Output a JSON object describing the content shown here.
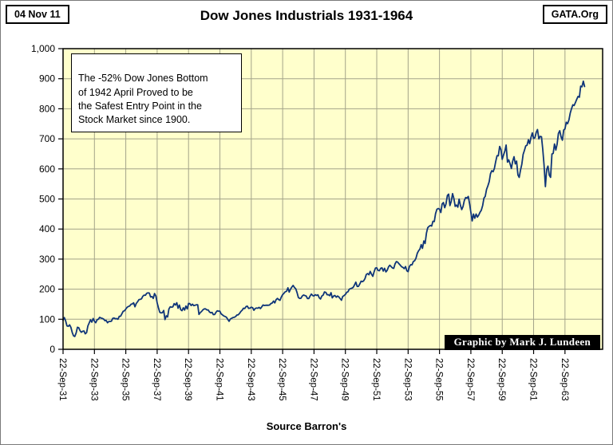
{
  "header": {
    "date": "04 Nov 11",
    "title": "Dow Jones Industrials 1931-1964",
    "site": "GATA.Org"
  },
  "annotation": {
    "text": "The -52% Dow Jones Bottom\nof 1942 April Proved to be\nthe Safest Entry Point in the\nStock Market since 1900."
  },
  "credit": {
    "text": "Graphic by Mark J. Lundeen"
  },
  "source": {
    "text": "Source Barron's"
  },
  "chart_data": {
    "type": "line",
    "title": "Dow Jones Industrials 1931-1964",
    "xlabel": "",
    "ylabel": "",
    "ylim": [
      0,
      1000
    ],
    "y_tick_step": 100,
    "y_tick_labels": [
      "0",
      "100",
      "200",
      "300",
      "400",
      "500",
      "600",
      "700",
      "800",
      "900",
      "1,000"
    ],
    "x_tick_labels": [
      "22-Sep-31",
      "22-Sep-33",
      "22-Sep-35",
      "22-Sep-37",
      "22-Sep-39",
      "22-Sep-41",
      "22-Sep-43",
      "22-Sep-45",
      "22-Sep-47",
      "22-Sep-49",
      "22-Sep-51",
      "22-Sep-53",
      "22-Sep-55",
      "22-Sep-57",
      "22-Sep-59",
      "22-Sep-61",
      "22-Sep-63"
    ],
    "x_tick_interval_years": 2,
    "x_total_years": 34.4,
    "grid": true,
    "legend": "none",
    "background_color": "#FFFFCC",
    "grid_color": "#A3A389",
    "line_color": "#0F3579",
    "series": [
      {
        "name": "Dow Jones Industrial Average",
        "start": "1931-09",
        "interval": "monthly",
        "values": [
          96.6,
          105.7,
          93.9,
          77.9,
          76.4,
          81.4,
          73.3,
          56.1,
          44.7,
          42.8,
          54.3,
          73.2,
          71.6,
          61.9,
          56.4,
          59.9,
          60.9,
          51.4,
          55.4,
          77.7,
          88.1,
          98.1,
          90.4,
          102.4,
          93.7,
          88.2,
          98.1,
          99.9,
          106.3,
          104,
          102.8,
          100.5,
          95.2,
          96,
          88.4,
          92.6,
          92.6,
          93.4,
          102.9,
          104,
          101.7,
          102,
          100.1,
          109.5,
          110.2,
          118.2,
          126.4,
          128.1,
          134,
          139.5,
          142.4,
          144.1,
          149.8,
          151,
          154.6,
          141.3,
          152.6,
          157.7,
          164.9,
          166.1,
          167.8,
          176.3,
          180,
          179.9,
          186.1,
          187.7,
          187,
          174.1,
          175.7,
          169.3,
          185.3,
          177.1,
          154.6,
          138.2,
          123,
          120.9,
          121.9,
          129.1,
          99,
          111.3,
          107.7,
          133.9,
          141.5,
          140.1,
          141.5,
          151.9,
          147.3,
          154.8,
          136.4,
          147.3,
          131.8,
          128.5,
          138.1,
          130.6,
          143.8,
          134.4,
          152.5,
          151.9,
          145.7,
          150.2,
          145.3,
          146.5,
          148,
          148.4,
          116.2,
          121.9,
          126.1,
          131.2,
          134.6,
          134.4,
          131,
          131.1,
          124.4,
          121.5,
          122.9,
          115.5,
          115.9,
          123.1,
          128.2,
          126.8,
          126.8,
          117.8,
          114.2,
          111,
          109.1,
          106.6,
          99.7,
          93,
          100.9,
          103.3,
          105.8,
          106.3,
          109.1,
          114.1,
          114.6,
          119.4,
          125.6,
          129.9,
          136.5,
          135.5,
          142.1,
          143.4,
          136,
          136.9,
          140.1,
          138.5,
          129.6,
          135.9,
          137.4,
          136.7,
          139.4,
          135.5,
          141.2,
          147.5,
          145.7,
          146.3,
          146.7,
          146.3,
          147.3,
          152.3,
          153.8,
          160.4,
          154.4,
          165,
          169.1,
          165.3,
          162.8,
          174.3,
          181.7,
          186.6,
          191.6,
          192.9,
          204.4,
          190.1,
          199.8,
          206.8,
          212.5,
          205.6,
          201.6,
          189.2,
          172.4,
          169.2,
          169.8,
          177.2,
          180.6,
          178.9,
          177.2,
          169,
          169,
          177.3,
          183.8,
          178.9,
          177.5,
          181.8,
          179.1,
          181.2,
          171.2,
          167.5,
          177.2,
          180.5,
          190.7,
          189.5,
          181.3,
          181.7,
          178.3,
          188.2,
          171.2,
          177.3,
          179.1,
          173.1,
          177.1,
          174.2,
          168.4,
          163,
          175.9,
          178.7,
          182.5,
          189.5,
          191.6,
          200.1,
          201.8,
          203.4,
          206.1,
          214.3,
          223.4,
          209.1,
          209.4,
          216.9,
          226.4,
          225,
          227.6,
          235.4,
          248.8,
          252.1,
          247.9,
          259.1,
          249.7,
          242.6,
          257.9,
          270.3,
          271.2,
          262.4,
          261.3,
          269.2,
          270.7,
          260.1,
          269.5,
          257.6,
          262.9,
          274.4,
          279.6,
          275,
          270.6,
          269.2,
          283.7,
          291.9,
          289.8,
          284.3,
          279.9,
          274.8,
          272.3,
          268.3,
          275.4,
          261.2,
          258,
          275.8,
          281.4,
          280.9,
          292.4,
          294.5,
          303.5,
          319.3,
          327.5,
          333.5,
          347.9,
          335.8,
          360.5,
          352.1,
          386.8,
          404.4,
          408.8,
          411.9,
          409.7,
          425.7,
          424.9,
          451.4,
          465.9,
          468.2,
          466.6,
          454.9,
          483.3,
          488.4,
          470.7,
          483.7,
          511.8,
          516.1,
          478.1,
          492.8,
          517.8,
          502,
          475.3,
          479.9,
          472.8,
          499.5,
          479.2,
          464.6,
          474.8,
          494.4,
          504.9,
          503.3,
          508.5,
          484.4,
          456.3,
          427,
          449.9,
          435.7,
          450,
          439.9,
          446.8,
          455.9,
          462.7,
          478.2,
          503,
          508.6,
          532.1,
          543.2,
          557.5,
          583.7,
          594,
          590.7,
          601.7,
          623.8,
          643.8,
          643.6,
          674.9,
          664.4,
          631.7,
          646.6,
          659.2,
          679.4,
          622.6,
          630.1,
          616.6,
          601.7,
          625.5,
          640.6,
          616.7,
          626,
          580.1,
          572,
          597.2,
          615.9,
          648.2,
          662.1,
          676.6,
          678.7,
          696.7,
          684,
          705.4,
          719.9,
          701.2,
          703.9,
          721.6,
          731.1,
          700,
          708.1,
          707,
          665.3,
          613.4,
          541,
          597.9,
          609.2,
          579,
          572,
          649.3,
          652.1,
          682.9,
          662.9,
          682.5,
          717.7,
          727,
          706.9,
          695.4,
          729.3,
          732.8,
          755.2,
          750.5,
          763,
          785.3,
          800.1,
          813.3,
          810.8,
          820.6,
          831.5,
          841.1,
          838.5,
          875.4,
          873.1,
          891.7,
          874.1
        ]
      }
    ]
  }
}
